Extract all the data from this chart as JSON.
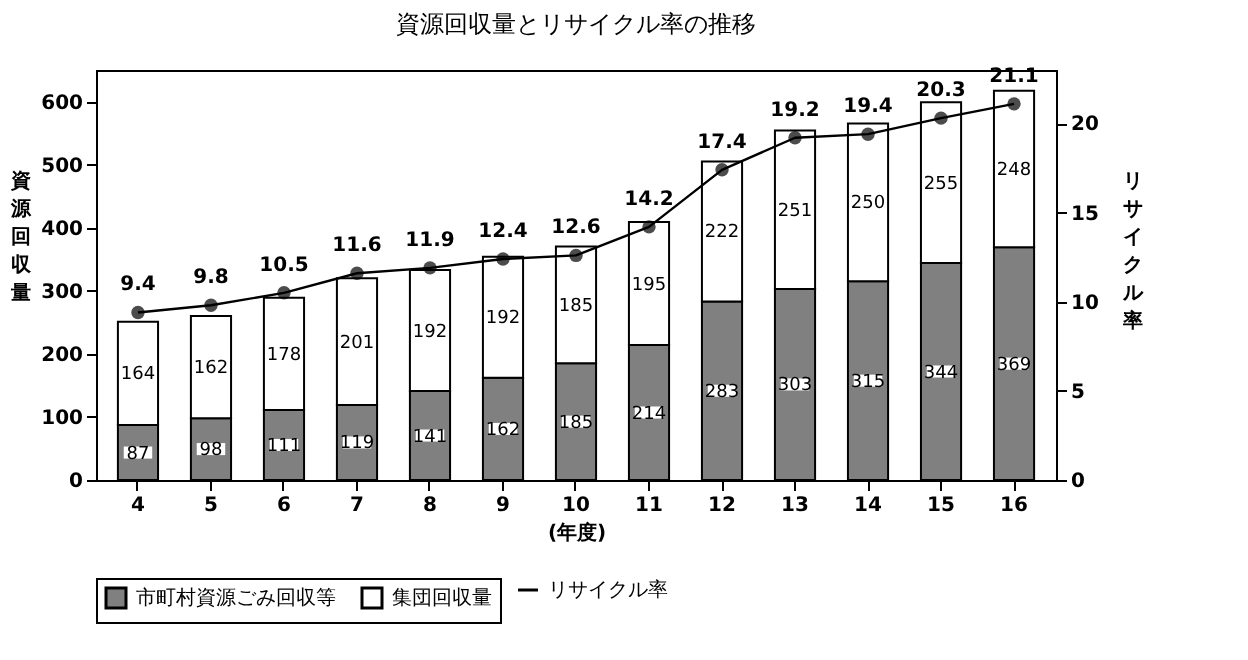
{
  "chart_data": {
    "type": "bar",
    "title": "資源回収量とリサイクル率の推移",
    "xlabel": "(年度)",
    "ylabel": "資源回収量",
    "y2label": "リサイクル率",
    "categories": [
      "4",
      "5",
      "6",
      "7",
      "8",
      "9",
      "10",
      "11",
      "12",
      "13",
      "14",
      "15",
      "16"
    ],
    "stacked": true,
    "data_labels": true,
    "legend": "bottom",
    "grid": false,
    "ylim": [
      0,
      650
    ],
    "yticks": [
      0,
      100,
      200,
      300,
      400,
      500,
      600
    ],
    "y2lim": [
      0,
      23
    ],
    "y2ticks": [
      0,
      5,
      10,
      15,
      20
    ],
    "series": [
      {
        "name": "市町村資源ごみ回収等",
        "color": "#808080",
        "values": [
          87,
          98,
          111,
          119,
          141,
          162,
          185,
          214,
          283,
          303,
          315,
          344,
          369
        ]
      },
      {
        "name": "集団回収量",
        "color": "#ffffff",
        "values": [
          164,
          162,
          178,
          201,
          192,
          192,
          185,
          195,
          222,
          251,
          250,
          255,
          248
        ]
      },
      {
        "name": "リサイクル率",
        "type": "line",
        "axis": "y2",
        "marker": "circle",
        "color": "#000000",
        "values": [
          9.4,
          9.8,
          10.5,
          11.6,
          11.9,
          12.4,
          12.6,
          14.2,
          17.4,
          19.2,
          19.4,
          20.3,
          21.1
        ]
      }
    ]
  }
}
